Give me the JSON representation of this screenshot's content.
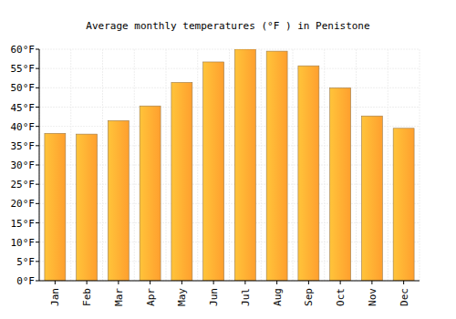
{
  "chart_data": {
    "type": "bar",
    "title": "Average monthly temperatures (°F ) in Penistone",
    "categories": [
      "Jan",
      "Feb",
      "Mar",
      "Apr",
      "May",
      "Jun",
      "Jul",
      "Aug",
      "Sep",
      "Oct",
      "Nov",
      "Dec"
    ],
    "values": [
      38.2,
      38,
      41.5,
      45.3,
      51.4,
      56.7,
      60,
      59.5,
      55.7,
      50,
      42.7,
      39.5
    ],
    "color": "#ff9f2e",
    "ylim": [
      0,
      60
    ],
    "yticks": [
      {
        "value": 0,
        "label": "0°F"
      },
      {
        "value": 5,
        "label": "5°F"
      },
      {
        "value": 10,
        "label": "10°F"
      },
      {
        "value": 15,
        "label": "15°F"
      },
      {
        "value": 20,
        "label": "20°F"
      },
      {
        "value": 25,
        "label": "25°F"
      },
      {
        "value": 30,
        "label": "30°F"
      },
      {
        "value": 35,
        "label": "35°F"
      },
      {
        "value": 40,
        "label": "40°F"
      },
      {
        "value": 45,
        "label": "45°F"
      },
      {
        "value": 50,
        "label": "50°F"
      },
      {
        "value": 55,
        "label": "55°F"
      },
      {
        "value": 60,
        "label": "60°F"
      }
    ],
    "grid": true
  }
}
